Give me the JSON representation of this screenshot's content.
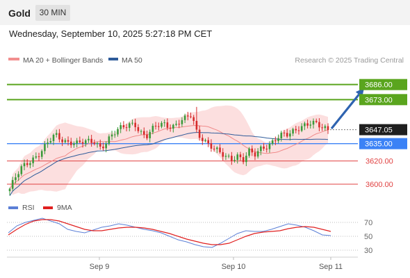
{
  "header": {
    "symbol": "Gold",
    "timeframe": "30 MIN"
  },
  "datetime": "Wednesday, September 10, 2025 5:27:18 PM CET",
  "chart_data": [
    {
      "type": "candlestick",
      "legend": [
        {
          "label": "MA 20 + Bollinger Bands",
          "color": "#f28e8e"
        },
        {
          "label": "MA 50",
          "color": "#2e5b9a"
        }
      ],
      "attribution": "Research © 2025 Trading Central",
      "ylim": [
        3588,
        3702
      ],
      "x_ticks": [
        "Sep 9",
        "Sep 10",
        "Sep 11"
      ],
      "current_price": {
        "value": 3647.05,
        "label": "3647.05"
      },
      "levels": [
        {
          "value": 3686.0,
          "label": "3686.00",
          "type": "target",
          "color": "#5aa51e"
        },
        {
          "value": 3673.0,
          "label": "3673.00",
          "type": "resistance",
          "color": "#5aa51e"
        },
        {
          "value": 3635.0,
          "label": "3635.00",
          "type": "pivot",
          "color": "#3b82f6"
        },
        {
          "value": 3620.0,
          "label": "3620.00",
          "type": "support",
          "color": "#e04040"
        },
        {
          "value": 3600.0,
          "label": "3600.00",
          "type": "support",
          "color": "#e04040"
        }
      ],
      "projection": {
        "from": 3648,
        "to": 3683,
        "color": "#2e63b0"
      },
      "colors": {
        "up": "#3a9a3a",
        "down": "#d62a2a",
        "band": "#fbd4d4",
        "ma20": "#f08a8a",
        "ma50": "#2e5b9a"
      },
      "close_path": [
        3596,
        3605,
        3613,
        3618,
        3622,
        3626,
        3631,
        3637,
        3642,
        3639,
        3637,
        3637,
        3635,
        3636,
        3636,
        3637,
        3632,
        3637,
        3642,
        3646,
        3649,
        3652,
        3653,
        3645,
        3640,
        3646,
        3651,
        3653,
        3651,
        3650,
        3654,
        3656,
        3660,
        3644,
        3640,
        3634,
        3630,
        3626,
        3624,
        3622,
        3626,
        3620,
        3628,
        3624,
        3630,
        3633,
        3636,
        3640,
        3642,
        3642,
        3646,
        3650,
        3652,
        3653,
        3651,
        3648,
        3647
      ],
      "candle_count": 110
    },
    {
      "type": "line",
      "legend": [
        {
          "label": "RSI",
          "color": "#5b7fd6"
        },
        {
          "label": "9MA",
          "color": "#e02020"
        }
      ],
      "ylim": [
        25,
        80
      ],
      "y_ticks": [
        30,
        50,
        70
      ],
      "series": [
        {
          "name": "RSI",
          "values": [
            55,
            65,
            70,
            73,
            76,
            72,
            68,
            60,
            57,
            55,
            59,
            63,
            65,
            68,
            66,
            63,
            60,
            58,
            55,
            50,
            45,
            42,
            38,
            35,
            34,
            40,
            47,
            54,
            58,
            57,
            57,
            60,
            64,
            68,
            66,
            63,
            58,
            52,
            51
          ]
        },
        {
          "name": "9MA",
          "values": [
            52,
            60,
            67,
            72,
            74,
            74,
            72,
            68,
            64,
            60,
            58,
            58,
            60,
            62,
            63,
            63,
            62,
            60,
            57,
            54,
            50,
            46,
            43,
            40,
            38,
            38,
            40,
            45,
            50,
            54,
            56,
            57,
            58,
            61,
            63,
            64,
            63,
            60,
            57
          ]
        }
      ]
    }
  ]
}
